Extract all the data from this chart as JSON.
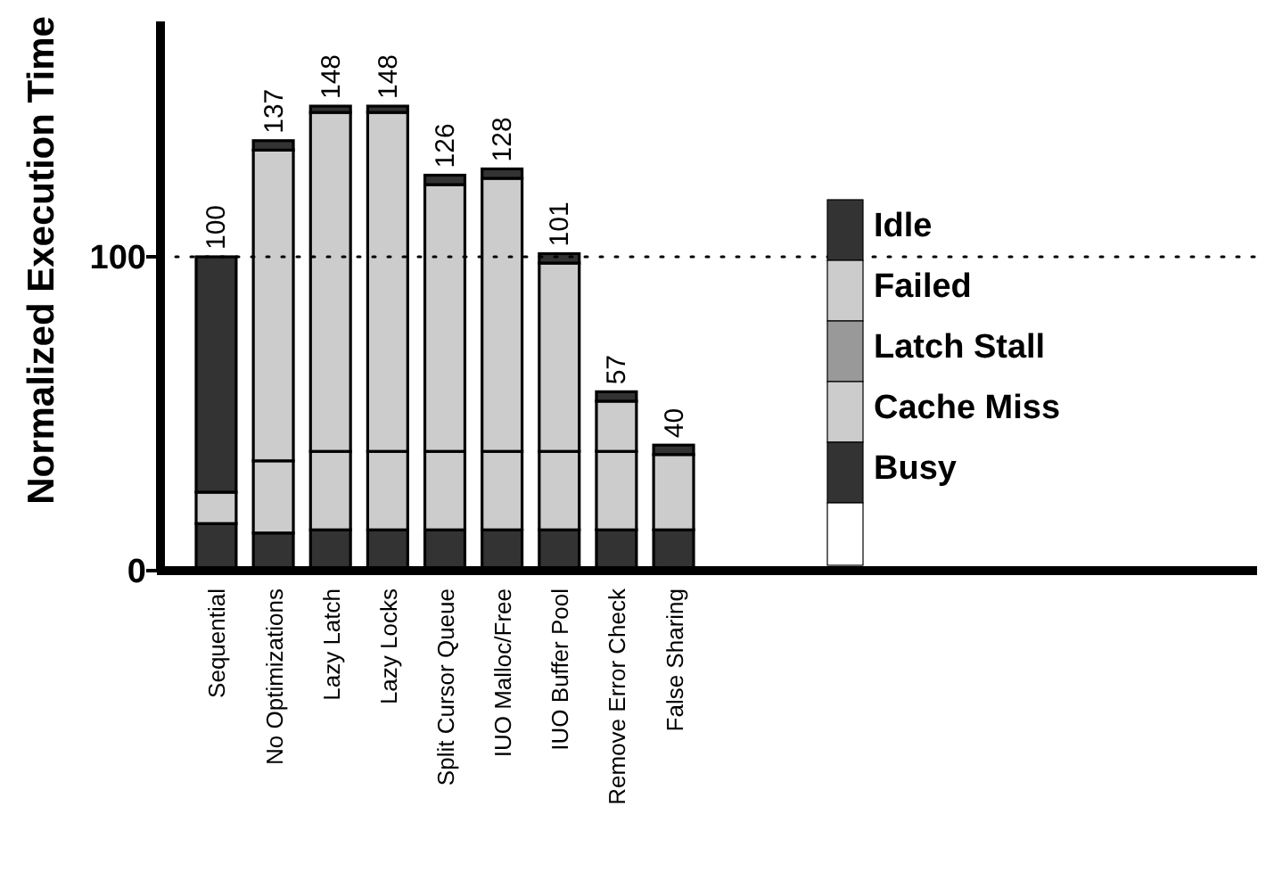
{
  "chart_data": {
    "type": "bar",
    "stacked": true,
    "ylabel": "Normalized Execution Time",
    "categories": [
      "Sequential",
      "No Optimizations",
      "Lazy Latch",
      "Lazy Locks",
      "Split Cursor Queue",
      "IUO Malloc/Free",
      "IUO Buffer Pool",
      "Remove Error Check",
      "False Sharing"
    ],
    "series": [
      {
        "name": "Busy",
        "color": "#333333",
        "values": [
          15,
          12,
          13,
          13,
          13,
          13,
          13,
          13,
          13
        ]
      },
      {
        "name": "Cache Miss",
        "color": "#cccccc",
        "values": [
          10,
          23,
          25,
          25,
          25,
          25,
          25,
          25,
          24
        ]
      },
      {
        "name": "Latch Stall",
        "color": "#999999",
        "values": [
          0,
          0,
          0,
          0,
          0,
          0,
          0,
          0,
          0
        ]
      },
      {
        "name": "Failed",
        "color": "#cccccc",
        "values": [
          0,
          99,
          108,
          108,
          85,
          87,
          60,
          16,
          0
        ]
      },
      {
        "name": "Idle",
        "color": "#333333",
        "values": [
          75,
          3,
          2,
          2,
          3,
          3,
          3,
          3,
          3
        ]
      }
    ],
    "totals": [
      "100",
      "137",
      "148",
      "148",
      "126",
      "128",
      "101",
      "57",
      "40"
    ],
    "ylim": [
      0,
      175
    ],
    "yticks": [
      0,
      100
    ],
    "grid": false,
    "legend": "right",
    "ref_lines": [
      {
        "axis": "y",
        "value": 100,
        "line_style": "dotted"
      }
    ]
  }
}
